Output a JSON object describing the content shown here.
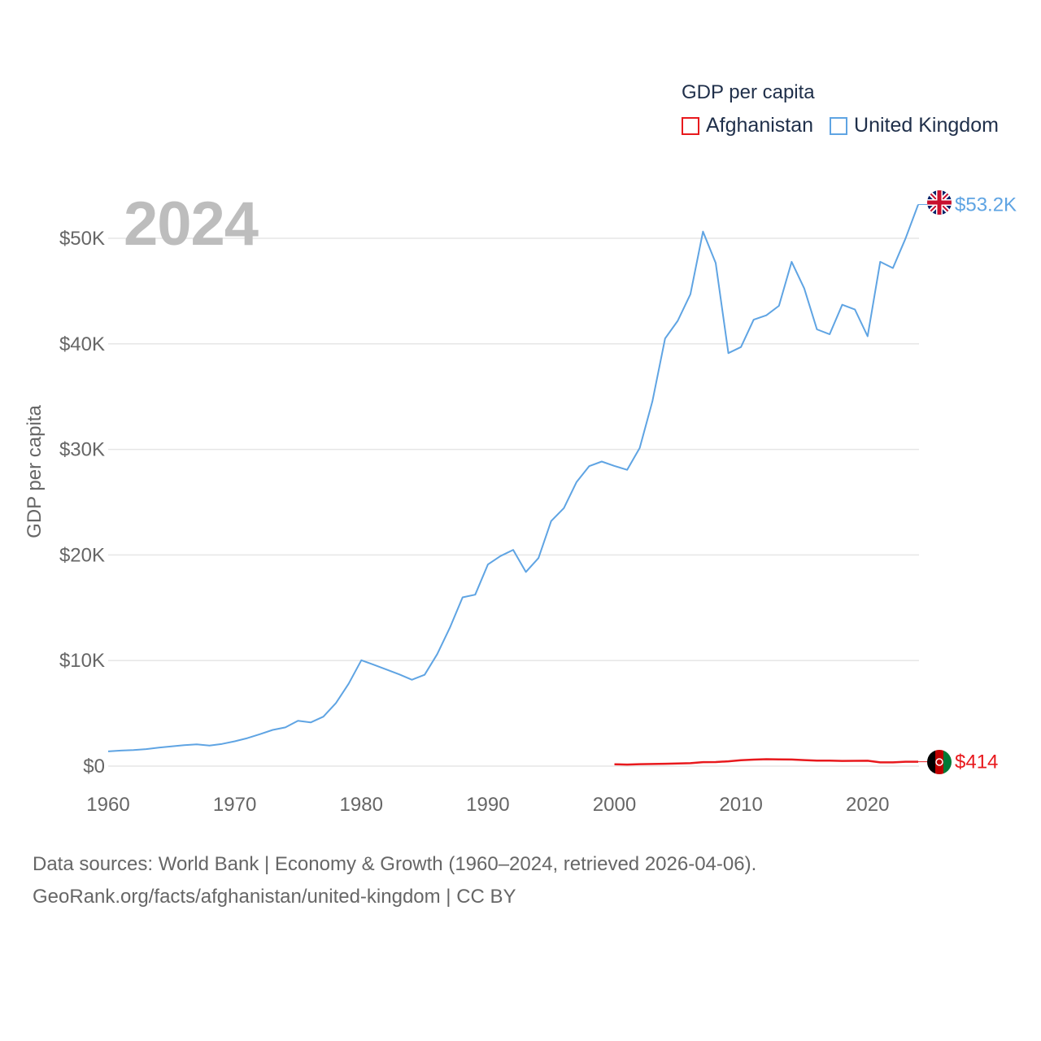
{
  "legend": {
    "title": "GDP per capita",
    "items": [
      {
        "name": "Afghanistan",
        "color": "#e8191d"
      },
      {
        "name": "United Kingdom",
        "color": "#5fa4e3"
      }
    ]
  },
  "year_label": "2024",
  "footer": {
    "line1": "Data sources: World Bank | Economy & Growth (1960–2024, retrieved 2026-04-06).",
    "line2": "GeoRank.org/facts/afghanistan/united-kingdom | CC BY"
  },
  "chart_data": {
    "type": "line",
    "ylabel": "GDP per capita",
    "xlabel": "",
    "xlim": [
      1960,
      2024
    ],
    "ylim": [
      0,
      55000
    ],
    "x_ticks": [
      1960,
      1970,
      1980,
      1990,
      2000,
      2010,
      2020
    ],
    "x_tick_labels": [
      "1960",
      "1970",
      "1980",
      "1990",
      "2000",
      "2010",
      "2020"
    ],
    "y_ticks": [
      0,
      10000,
      20000,
      30000,
      40000,
      50000
    ],
    "y_tick_labels": [
      "$0",
      "$10K",
      "$20K",
      "$30K",
      "$40K",
      "$50K"
    ],
    "grid": true,
    "series": [
      {
        "name": "United Kingdom",
        "color": "#5fa4e3",
        "end_label": "$53.2K",
        "x": [
          1960,
          1961,
          1962,
          1963,
          1964,
          1965,
          1966,
          1967,
          1968,
          1969,
          1970,
          1971,
          1972,
          1973,
          1974,
          1975,
          1976,
          1977,
          1978,
          1979,
          1980,
          1981,
          1982,
          1983,
          1984,
          1985,
          1986,
          1987,
          1988,
          1989,
          1990,
          1991,
          1992,
          1993,
          1994,
          1995,
          1996,
          1997,
          1998,
          1999,
          2000,
          2001,
          2002,
          2003,
          2004,
          2005,
          2006,
          2007,
          2008,
          2009,
          2010,
          2011,
          2012,
          2013,
          2014,
          2015,
          2016,
          2017,
          2018,
          2019,
          2020,
          2021,
          2022,
          2023,
          2024
        ],
        "values": [
          1398,
          1472,
          1526,
          1613,
          1749,
          1874,
          1987,
          2058,
          1952,
          2101,
          2348,
          2650,
          3030,
          3426,
          3665,
          4300,
          4138,
          4682,
          5977,
          7805,
          10032,
          9599,
          9146,
          8691,
          8179,
          8652,
          10612,
          13119,
          15987,
          16239,
          19095,
          19901,
          20487,
          18389,
          19710,
          23216,
          24436,
          26898,
          28415,
          28850,
          28439,
          28066,
          30143,
          34563,
          40508,
          42181,
          44698,
          50636,
          47656,
          39124,
          39701,
          42285,
          42702,
          43603,
          47777,
          45246,
          41370,
          40907,
          43703,
          43254,
          40716,
          47777,
          47178,
          49980,
          53200
        ]
      },
      {
        "name": "Afghanistan",
        "color": "#e8191d",
        "end_label": "$414",
        "x": [
          2000,
          2001,
          2002,
          2003,
          2004,
          2005,
          2006,
          2007,
          2008,
          2009,
          2010,
          2011,
          2012,
          2013,
          2014,
          2015,
          2016,
          2017,
          2018,
          2019,
          2020,
          2021,
          2022,
          2023,
          2024
        ],
        "values": [
          180,
          150,
          183,
          200,
          221,
          255,
          274,
          376,
          382,
          454,
          562,
          620,
          652,
          638,
          625,
          568,
          522,
          525,
          492,
          497,
          509,
          356,
          357,
          414,
          414
        ]
      }
    ]
  }
}
